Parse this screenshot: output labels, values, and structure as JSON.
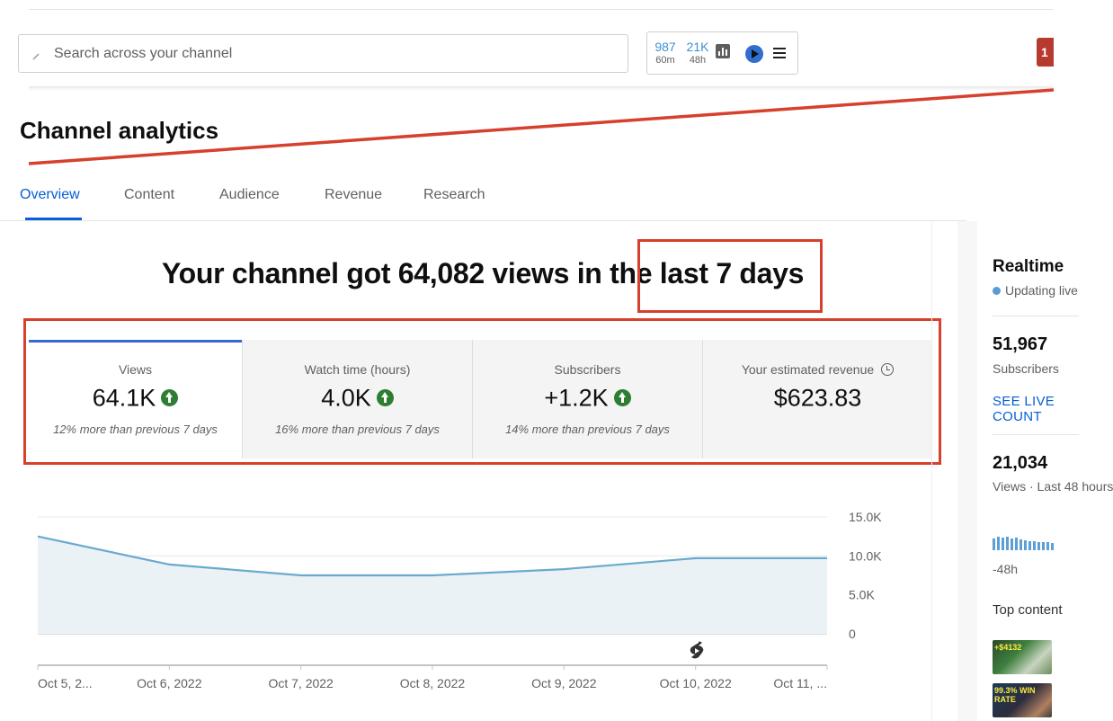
{
  "search": {
    "placeholder": "Search across your channel"
  },
  "widget": {
    "stat1": {
      "value": "987",
      "label": "60m"
    },
    "stat2": {
      "value": "21K",
      "label": "48h"
    },
    "icons": [
      "bar-chart-icon",
      "vidiq-icon",
      "menu-icon"
    ]
  },
  "avatar_text": "1",
  "page_title": "Channel analytics",
  "tabs": [
    {
      "label": "Overview",
      "active": true
    },
    {
      "label": "Content"
    },
    {
      "label": "Audience"
    },
    {
      "label": "Revenue"
    },
    {
      "label": "Research"
    }
  ],
  "headline": "Your channel got 64,082 views in the last 7 days",
  "metrics": [
    {
      "title": "Views",
      "value": "64.1K",
      "trend": "up",
      "delta": "12% more than previous 7 days"
    },
    {
      "title": "Watch time (hours)",
      "value": "4.0K",
      "trend": "up",
      "delta": "16% more than previous 7 days"
    },
    {
      "title": "Subscribers",
      "value": "+1.2K",
      "trend": "up",
      "delta": "14% more than previous 7 days"
    },
    {
      "title": "Your estimated revenue",
      "value": "$623.83",
      "icon": "clock-icon"
    }
  ],
  "chart_data": {
    "type": "area",
    "x": [
      "Oct 5, 2...",
      "Oct 6, 2022",
      "Oct 7, 2022",
      "Oct 8, 2022",
      "Oct 9, 2022",
      "Oct 10, 2022",
      "Oct 11, ..."
    ],
    "values": [
      12500,
      8900,
      7500,
      7500,
      8300,
      9700,
      9700
    ],
    "ylim": [
      0,
      15000
    ],
    "yticks": [
      "15.0K",
      "10.0K",
      "5.0K",
      "0"
    ],
    "grid": true,
    "y_axis_side": "right",
    "colors": {
      "line": "#6aa9cf",
      "fill": "#eaf2f6"
    },
    "annotation_icon": "shorts-icon"
  },
  "realtime": {
    "title": "Realtime",
    "status": "Updating live",
    "subscribers_value": "51,967",
    "subscribers_label": "Subscribers",
    "see_live": "SEE LIVE COUNT",
    "views_value": "21,034",
    "views_label": "Views · Last 48 hours",
    "spark_label": "-48h",
    "top_content": "Top content",
    "thumb1_text": "+$4132",
    "thumb2_text": "99.3% WIN RATE"
  },
  "colors": {
    "accent": "#065fd4",
    "annotation": "#d6402d",
    "positive": "#2e7d32"
  }
}
